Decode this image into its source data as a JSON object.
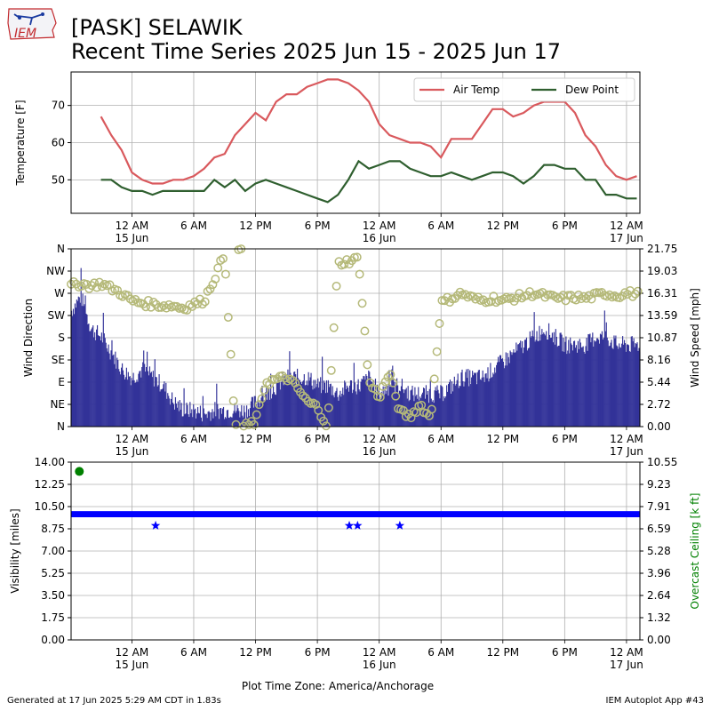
{
  "header": {
    "title_line1": "[PASK] SELAWIK",
    "title_line2": "Recent Time Series 2025 Jun 15 - 2025 Jun 17",
    "logo_text": "IEM"
  },
  "footer": {
    "generated": "Generated at 17 Jun 2025 5:29 AM CDT in 1.83s",
    "app": "IEM Autoplot App #43"
  },
  "time_axis": {
    "tick_hours": [
      6,
      12,
      18,
      24,
      30,
      36,
      42,
      48,
      54
    ],
    "tick_labels": [
      [
        "12 AM",
        "15 Jun"
      ],
      [
        "6 AM",
        ""
      ],
      [
        "12 PM",
        ""
      ],
      [
        "6 PM",
        ""
      ],
      [
        "12 AM",
        "16 Jun"
      ],
      [
        "6 AM",
        ""
      ],
      [
        "12 PM",
        ""
      ],
      [
        "6 PM",
        ""
      ],
      [
        "12 AM",
        "17 Jun"
      ]
    ],
    "xlabel": "Plot Time Zone: America/Anchorage",
    "xlim_hours": [
      0.1,
      55.3
    ]
  },
  "chart_data": [
    {
      "type": "line",
      "ylabel": "Temperature [F]",
      "ylim": [
        41,
        79
      ],
      "yticks": [
        50,
        60,
        70
      ],
      "grid": true,
      "legend_position": "top-right",
      "series": [
        {
          "name": "Air Temp",
          "color": "#d9595d",
          "points": [
            [
              3,
              67
            ],
            [
              4,
              62
            ],
            [
              5,
              58
            ],
            [
              6,
              52
            ],
            [
              7,
              50
            ],
            [
              8,
              49
            ],
            [
              9,
              49
            ],
            [
              10,
              50
            ],
            [
              11,
              50
            ],
            [
              12,
              51
            ],
            [
              13,
              53
            ],
            [
              14,
              56
            ],
            [
              15,
              57
            ],
            [
              16,
              62
            ],
            [
              17,
              65
            ],
            [
              18,
              68
            ],
            [
              19,
              66
            ],
            [
              20,
              71
            ],
            [
              21,
              73
            ],
            [
              22,
              73
            ],
            [
              23,
              75
            ],
            [
              24,
              76
            ],
            [
              25,
              77
            ],
            [
              26,
              77
            ],
            [
              27,
              76
            ],
            [
              28,
              74
            ],
            [
              29,
              71
            ],
            [
              30,
              65
            ],
            [
              31,
              62
            ],
            [
              32,
              61
            ],
            [
              33,
              60
            ],
            [
              34,
              60
            ],
            [
              35,
              59
            ],
            [
              36,
              56
            ],
            [
              37,
              61
            ],
            [
              38,
              61
            ],
            [
              39,
              61
            ],
            [
              40,
              65
            ],
            [
              41,
              69
            ],
            [
              42,
              69
            ],
            [
              43,
              67
            ],
            [
              44,
              68
            ],
            [
              45,
              70
            ],
            [
              46,
              71
            ],
            [
              47,
              71
            ],
            [
              48,
              71
            ],
            [
              49,
              68
            ],
            [
              50,
              62
            ],
            [
              51,
              59
            ],
            [
              52,
              54
            ],
            [
              53,
              51
            ],
            [
              54,
              50
            ],
            [
              55,
              51
            ]
          ]
        },
        {
          "name": "Dew Point",
          "color": "#2f5f2f",
          "points": [
            [
              3,
              50
            ],
            [
              4,
              50
            ],
            [
              5,
              48
            ],
            [
              6,
              47
            ],
            [
              7,
              47
            ],
            [
              8,
              46
            ],
            [
              9,
              47
            ],
            [
              10,
              47
            ],
            [
              11,
              47
            ],
            [
              12,
              47
            ],
            [
              13,
              47
            ],
            [
              14,
              50
            ],
            [
              15,
              48
            ],
            [
              16,
              50
            ],
            [
              17,
              47
            ],
            [
              18,
              49
            ],
            [
              19,
              50
            ],
            [
              20,
              49
            ],
            [
              21,
              48
            ],
            [
              22,
              47
            ],
            [
              23,
              46
            ],
            [
              24,
              45
            ],
            [
              25,
              44
            ],
            [
              26,
              46
            ],
            [
              27,
              50
            ],
            [
              28,
              55
            ],
            [
              29,
              53
            ],
            [
              30,
              54
            ],
            [
              31,
              55
            ],
            [
              32,
              55
            ],
            [
              33,
              53
            ],
            [
              34,
              52
            ],
            [
              35,
              51
            ],
            [
              36,
              51
            ],
            [
              37,
              52
            ],
            [
              38,
              51
            ],
            [
              39,
              50
            ],
            [
              40,
              51
            ],
            [
              41,
              52
            ],
            [
              42,
              52
            ],
            [
              43,
              51
            ],
            [
              44,
              49
            ],
            [
              45,
              51
            ],
            [
              46,
              54
            ],
            [
              47,
              54
            ],
            [
              48,
              53
            ],
            [
              49,
              53
            ],
            [
              50,
              50
            ],
            [
              51,
              50
            ],
            [
              52,
              46
            ],
            [
              53,
              46
            ],
            [
              54,
              45
            ],
            [
              55,
              45
            ]
          ]
        }
      ]
    },
    {
      "type": "bar+scatter",
      "ylabel": "Wind Direction",
      "y2label": "Wind Speed [mph]",
      "ylim_deg": [
        0,
        360
      ],
      "direction_ticks": [
        "N",
        "NE",
        "E",
        "SE",
        "S",
        "SW",
        "W",
        "NW",
        "N"
      ],
      "y2_ticks": [
        "0.00",
        "2.72",
        "5.44",
        "8.16",
        "10.87",
        "13.59",
        "16.31",
        "19.03",
        "21.75"
      ],
      "y2lim": [
        0,
        21.75
      ],
      "bar_color": "#333399",
      "marker_color": "#b5b979",
      "grid": true,
      "speed_series": [
        [
          0,
          14
        ],
        [
          1,
          16
        ],
        [
          2,
          12
        ],
        [
          3,
          11
        ],
        [
          4,
          9
        ],
        [
          5,
          7
        ],
        [
          6,
          6
        ],
        [
          7,
          7
        ],
        [
          8,
          6
        ],
        [
          9,
          5
        ],
        [
          10,
          3
        ],
        [
          11,
          2
        ],
        [
          12,
          2
        ],
        [
          13,
          1.5
        ],
        [
          14,
          2
        ],
        [
          15,
          2
        ],
        [
          16,
          2
        ],
        [
          17,
          2
        ],
        [
          18,
          3
        ],
        [
          19,
          4
        ],
        [
          20,
          5
        ],
        [
          21,
          6
        ],
        [
          22,
          6
        ],
        [
          23,
          6
        ],
        [
          24,
          5
        ],
        [
          25,
          5
        ],
        [
          26,
          4
        ],
        [
          27,
          5
        ],
        [
          28,
          5
        ],
        [
          29,
          6
        ],
        [
          30,
          4
        ],
        [
          31,
          5
        ],
        [
          32,
          5
        ],
        [
          33,
          4
        ],
        [
          34,
          4
        ],
        [
          35,
          4
        ],
        [
          36,
          4
        ],
        [
          37,
          5
        ],
        [
          38,
          6
        ],
        [
          39,
          6
        ],
        [
          40,
          6
        ],
        [
          41,
          7
        ],
        [
          42,
          8
        ],
        [
          43,
          9
        ],
        [
          44,
          10
        ],
        [
          45,
          11
        ],
        [
          46,
          12
        ],
        [
          47,
          11
        ],
        [
          48,
          10
        ],
        [
          49,
          10
        ],
        [
          50,
          10
        ],
        [
          51,
          11
        ],
        [
          52,
          11
        ],
        [
          53,
          10
        ],
        [
          54,
          10
        ],
        [
          55,
          10
        ]
      ],
      "direction_series": [
        [
          0,
          285
        ],
        [
          1,
          290
        ],
        [
          2,
          285
        ],
        [
          3,
          290
        ],
        [
          4,
          280
        ],
        [
          5,
          270
        ],
        [
          6,
          255
        ],
        [
          7,
          250
        ],
        [
          8,
          248
        ],
        [
          9,
          245
        ],
        [
          10,
          245
        ],
        [
          11,
          240
        ],
        [
          12,
          248
        ],
        [
          13,
          255
        ],
        [
          14,
          300
        ],
        [
          15,
          350
        ],
        [
          16,
          0
        ],
        [
          17,
          0
        ],
        [
          18,
          10
        ],
        [
          19,
          90
        ],
        [
          20,
          95
        ],
        [
          21,
          100
        ],
        [
          22,
          80
        ],
        [
          23,
          50
        ],
        [
          24,
          40
        ],
        [
          25,
          0
        ],
        [
          26,
          330
        ],
        [
          27,
          335
        ],
        [
          28,
          340
        ],
        [
          29,
          90
        ],
        [
          30,
          60
        ],
        [
          31,
          110
        ],
        [
          32,
          30
        ],
        [
          33,
          20
        ],
        [
          34,
          45
        ],
        [
          35,
          15
        ],
        [
          36,
          250
        ],
        [
          37,
          260
        ],
        [
          38,
          270
        ],
        [
          39,
          260
        ],
        [
          40,
          255
        ],
        [
          41,
          260
        ],
        [
          42,
          255
        ],
        [
          43,
          260
        ],
        [
          44,
          265
        ],
        [
          45,
          270
        ],
        [
          46,
          265
        ],
        [
          47,
          260
        ],
        [
          48,
          260
        ],
        [
          49,
          262
        ],
        [
          50,
          260
        ],
        [
          51,
          265
        ],
        [
          52,
          270
        ],
        [
          53,
          265
        ],
        [
          54,
          270
        ],
        [
          55,
          268
        ]
      ]
    },
    {
      "type": "scatter",
      "ylabel": "Visibility [miles]",
      "y2label": "Overcast Ceiling [k ft]",
      "ylim": [
        0,
        14
      ],
      "yticks": [
        "0.00",
        "1.75",
        "3.50",
        "5.25",
        "7.00",
        "8.75",
        "10.50",
        "12.25",
        "14.00"
      ],
      "y2_ticks": [
        "0.00",
        "1.32",
        "2.64",
        "3.96",
        "5.28",
        "6.59",
        "7.91",
        "9.23",
        "10.55"
      ],
      "y2lim": [
        0,
        10.55
      ],
      "grid": true,
      "visibility_color": "#0000ff",
      "ceiling_color": "#008000",
      "visibility_band": {
        "x_start": 0.1,
        "x_end": 55.3,
        "y_low": 9.8,
        "y_high": 10.0
      },
      "visibility_dips": [
        [
          8.3,
          9.0
        ],
        [
          27.1,
          9.0
        ],
        [
          27.9,
          9.0
        ],
        [
          32.0,
          9.0
        ]
      ],
      "ceiling_points": [
        [
          0.9,
          10.0
        ]
      ]
    }
  ]
}
